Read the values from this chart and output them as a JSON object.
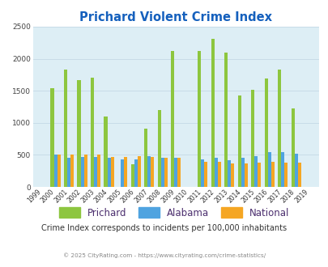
{
  "title": "Prichard Violent Crime Index",
  "years": [
    1999,
    2000,
    2001,
    2002,
    2003,
    2004,
    2005,
    2006,
    2007,
    2008,
    2009,
    2010,
    2011,
    2012,
    2013,
    2014,
    2015,
    2016,
    2017,
    2018,
    2019
  ],
  "prichard": [
    0,
    1540,
    1830,
    1665,
    1700,
    1095,
    0,
    350,
    910,
    1200,
    2120,
    0,
    2120,
    2310,
    2090,
    1430,
    1510,
    1690,
    1835,
    1225,
    0
  ],
  "alabama": [
    0,
    500,
    450,
    465,
    465,
    455,
    430,
    430,
    475,
    460,
    455,
    0,
    435,
    460,
    415,
    450,
    480,
    540,
    540,
    520,
    0
  ],
  "national": [
    0,
    505,
    510,
    505,
    500,
    465,
    465,
    475,
    465,
    460,
    455,
    0,
    390,
    390,
    370,
    365,
    375,
    390,
    385,
    375,
    0
  ],
  "bar_width": 0.25,
  "ylim": [
    0,
    2500
  ],
  "yticks": [
    0,
    500,
    1000,
    1500,
    2000,
    2500
  ],
  "prichard_color": "#8dc63f",
  "alabama_color": "#4fa3e0",
  "national_color": "#f5a623",
  "bg_color": "#ddeef5",
  "grid_color": "#c8dce8",
  "title_color": "#1560bd",
  "subtitle": "Crime Index corresponds to incidents per 100,000 inhabitants",
  "footer": "© 2025 CityRating.com - https://www.cityrating.com/crime-statistics/",
  "legend_label_color": "#4b2e6e",
  "subtitle_color": "#333333",
  "footer_color": "#888888"
}
